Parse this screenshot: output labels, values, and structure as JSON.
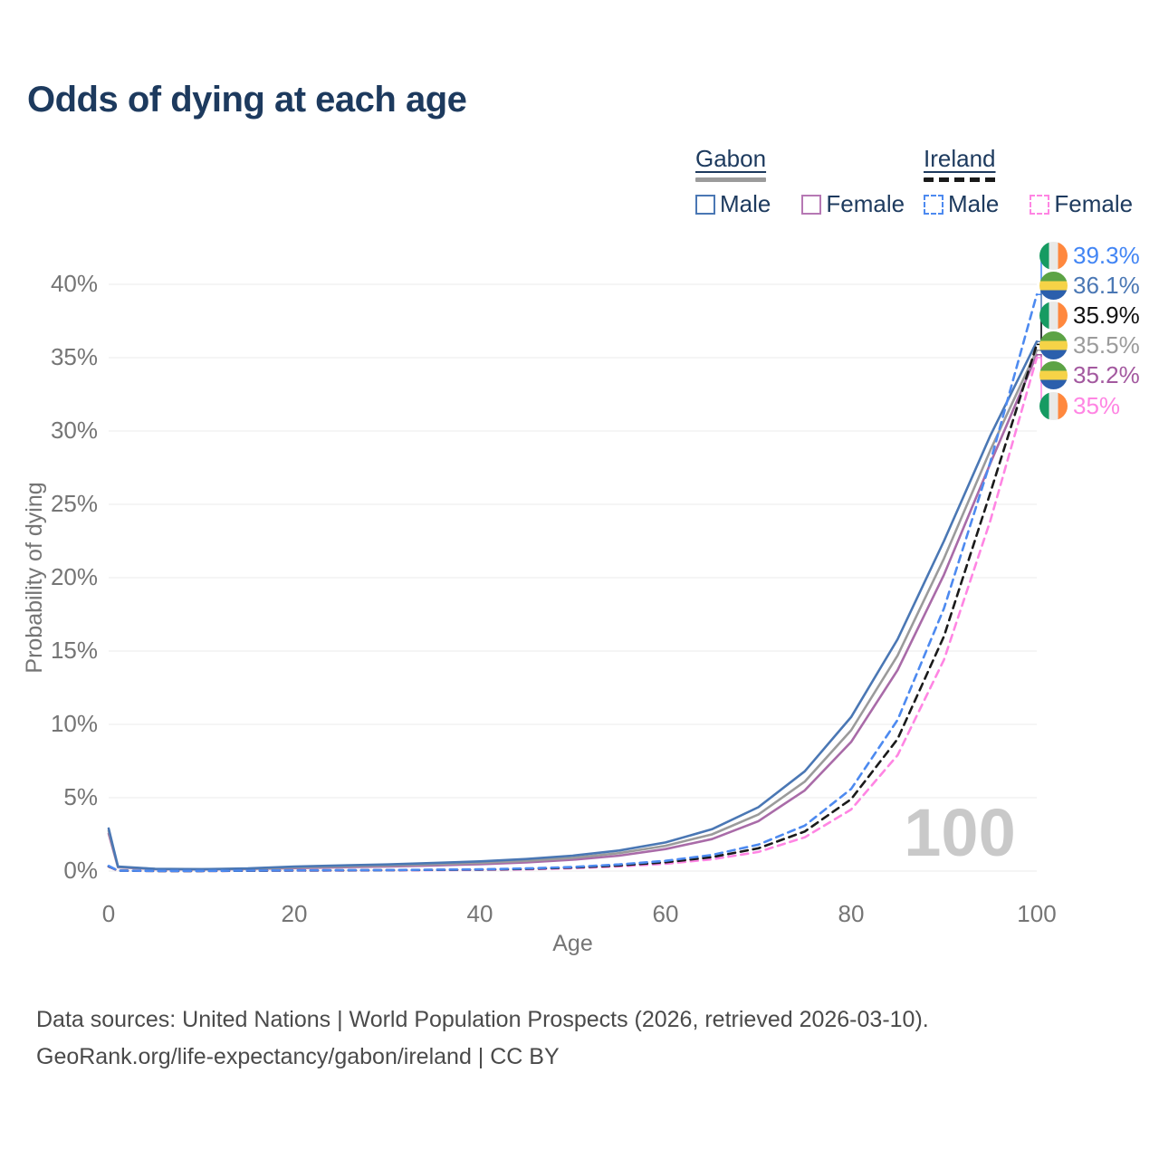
{
  "title": "Odds of dying at each age",
  "legend": {
    "groups": [
      {
        "country": "Gabon",
        "line_style": "solid",
        "bar_color": "#9b9b9b",
        "items": [
          {
            "label": "Male",
            "color": "#4a77b4"
          },
          {
            "label": "Female",
            "color": "#b678b4"
          }
        ]
      },
      {
        "country": "Ireland",
        "line_style": "dashed",
        "bar_color": "#1a1a1a",
        "items": [
          {
            "label": "Male",
            "color": "#4d8af0"
          },
          {
            "label": "Female",
            "color": "#ff85e3"
          }
        ]
      }
    ]
  },
  "chart_data": {
    "type": "line",
    "title": "Odds of dying at each age",
    "xlabel": "Age",
    "ylabel": "Probability of dying",
    "xlim": [
      0,
      100
    ],
    "ylim": [
      0,
      40
    ],
    "x_ticks": [
      0,
      20,
      40,
      60,
      80,
      100
    ],
    "y_ticks": [
      0,
      5,
      10,
      15,
      20,
      25,
      30,
      35,
      40
    ],
    "y_tick_suffix": "%",
    "grid": "horizontal",
    "watermark": "100",
    "x": [
      0,
      1,
      5,
      10,
      15,
      20,
      25,
      30,
      35,
      40,
      45,
      50,
      55,
      60,
      65,
      70,
      75,
      80,
      85,
      90,
      95,
      100
    ],
    "series": [
      {
        "name": "Gabon Female",
        "country": "Gabon",
        "sex": "Female",
        "color": "#a96ba8",
        "dashed": false,
        "values": [
          2.55,
          0.26,
          0.13,
          0.11,
          0.14,
          0.2,
          0.26,
          0.31,
          0.38,
          0.47,
          0.59,
          0.77,
          1.05,
          1.5,
          2.18,
          3.4,
          5.5,
          8.8,
          13.7,
          20.2,
          27.8,
          35.2
        ],
        "end_label": "35.2%",
        "end_label_color": "#a3599f",
        "flag": "gabon",
        "label_slot": 4
      },
      {
        "name": "Gabon",
        "country": "Gabon",
        "sex": "Both",
        "color": "#9b9b9b",
        "dashed": false,
        "values": [
          2.75,
          0.28,
          0.14,
          0.12,
          0.16,
          0.25,
          0.32,
          0.38,
          0.46,
          0.56,
          0.7,
          0.9,
          1.22,
          1.72,
          2.5,
          3.85,
          6.1,
          9.6,
          14.7,
          21.3,
          28.7,
          35.5
        ],
        "end_label": "35.5%",
        "end_label_color": "#9b9b9b",
        "flag": "gabon",
        "label_slot": 3
      },
      {
        "name": "Gabon Male",
        "country": "Gabon",
        "sex": "Male",
        "color": "#4a77b4",
        "dashed": false,
        "values": [
          2.9,
          0.3,
          0.15,
          0.13,
          0.18,
          0.3,
          0.38,
          0.45,
          0.55,
          0.66,
          0.82,
          1.05,
          1.4,
          1.95,
          2.85,
          4.35,
          6.8,
          10.5,
          15.8,
          22.5,
          29.7,
          36.1
        ],
        "end_label": "36.1%",
        "end_label_color": "#4a77b4",
        "flag": "gabon",
        "label_slot": 1
      },
      {
        "name": "Ireland Female",
        "country": "Ireland",
        "sex": "Female",
        "color": "#ff85e3",
        "dashed": true,
        "values": [
          0.3,
          0.025,
          0.008,
          0.008,
          0.02,
          0.03,
          0.04,
          0.05,
          0.06,
          0.08,
          0.12,
          0.2,
          0.32,
          0.5,
          0.8,
          1.3,
          2.3,
          4.2,
          7.9,
          14.4,
          23.9,
          35.0
        ],
        "end_label": "35%",
        "end_label_color": "#ff85e3",
        "flag": "ireland",
        "label_slot": 5
      },
      {
        "name": "Ireland",
        "country": "Ireland",
        "sex": "Both",
        "color": "#1a1a1a",
        "dashed": true,
        "values": [
          0.32,
          0.028,
          0.009,
          0.009,
          0.025,
          0.04,
          0.05,
          0.06,
          0.08,
          0.1,
          0.15,
          0.24,
          0.38,
          0.6,
          0.95,
          1.55,
          2.7,
          4.9,
          9.0,
          16.0,
          25.8,
          35.9
        ],
        "end_label": "35.9%",
        "end_label_color": "#111111",
        "flag": "ireland",
        "label_slot": 2
      },
      {
        "name": "Ireland Male",
        "country": "Ireland",
        "sex": "Male",
        "color": "#4d8af0",
        "dashed": true,
        "values": [
          0.35,
          0.03,
          0.01,
          0.01,
          0.03,
          0.05,
          0.06,
          0.07,
          0.09,
          0.12,
          0.18,
          0.28,
          0.45,
          0.7,
          1.1,
          1.8,
          3.1,
          5.6,
          10.3,
          17.9,
          27.9,
          39.3
        ],
        "end_label": "39.3%",
        "end_label_color": "#4285f4",
        "flag": "ireland",
        "label_slot": 0
      }
    ]
  },
  "footer": {
    "line1": "Data sources: United Nations | World Population Prospects (2026, retrieved 2026-03-10).",
    "line2": "GeoRank.org/life-expectancy/gabon/ireland | CC BY"
  }
}
